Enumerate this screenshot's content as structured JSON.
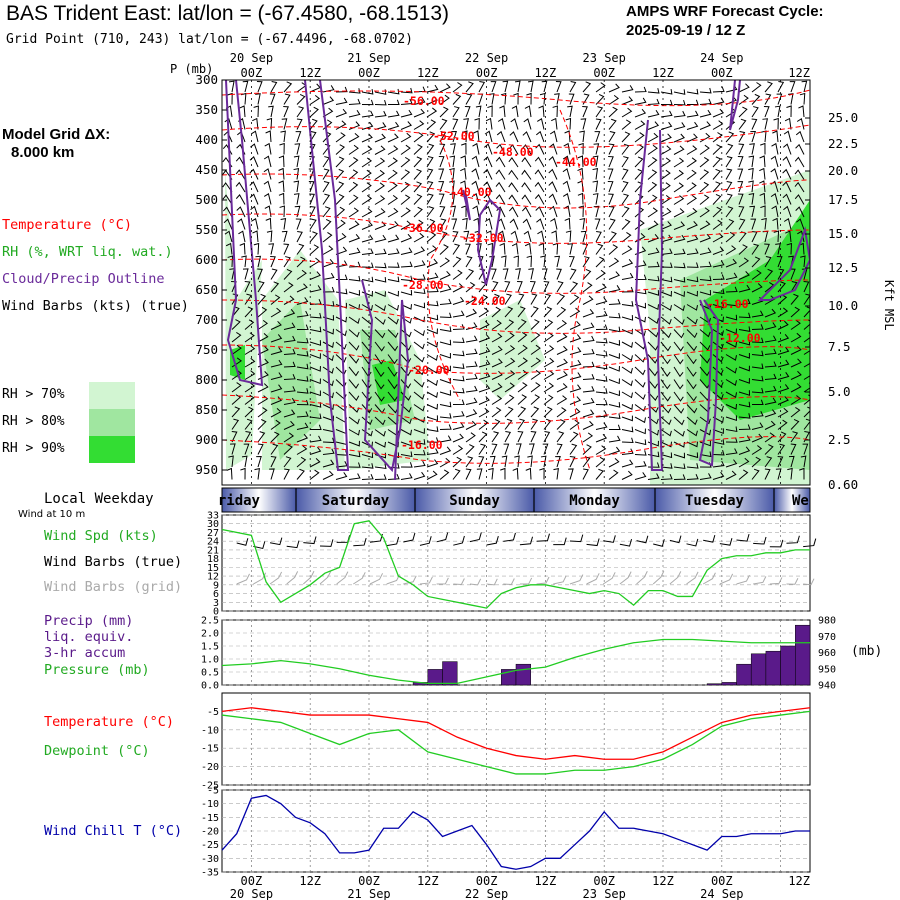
{
  "header": {
    "title": "BAS Trident East:  lat/lon = (-67.4580, -68.1513)",
    "subtitle": "Grid Point (710, 243) lat/lon = (-67.4496, -68.0702)",
    "cycle_line1": "AMPS WRF Forecast Cycle:",
    "cycle_line2": "2025-09-19 / 12  Z"
  },
  "model_grid": {
    "line1": "Model Grid ΔX:",
    "line2": "8.000 km"
  },
  "colors": {
    "temperature": "#ff0000",
    "rh": "#22cc22",
    "cloud": "#6a2a9a",
    "wind": "#000000",
    "wind_grid": "#aaaaaa",
    "wind_chill": "#0000aa",
    "precip": "#5a1a8a",
    "rh70": "#d2f5d2",
    "rh80": "#a0e6a0",
    "rh90": "#33dd33",
    "weekday_band": "#4a5aa8"
  },
  "sounding": {
    "p_label": "P (mb)",
    "pressure_ticks": [
      "300",
      "350",
      "400",
      "450",
      "500",
      "550",
      "600",
      "650",
      "700",
      "750",
      "800",
      "850",
      "900",
      "950"
    ],
    "height_ticks": [
      "25.0",
      "22.5",
      "20.0",
      "17.5",
      "15.0",
      "12.5",
      "10.0",
      "7.5",
      "5.0",
      "2.5",
      "0.60"
    ],
    "height_axis_label": "Kft MSL",
    "legend": {
      "temperature": "Temperature (°C)",
      "rh": "RH (%, WRT liq. wat.)",
      "cloud": "Cloud/Precip Outline",
      "wind": "Wind Barbs (kts) (true)"
    },
    "rh_legend": [
      "RH > 70%",
      "RH > 80%",
      "RH > 90%"
    ],
    "temp_labels": [
      "-56.00",
      "-52.00",
      "-48.00",
      "-44.00",
      "-40.00",
      "-36.00",
      "-32.00",
      "-28.00",
      "-24.00",
      "-20.00",
      "-16.00",
      "-16.00",
      "-12.00"
    ]
  },
  "time_axis": {
    "hour_labels": [
      "00Z",
      "12Z",
      "00Z",
      "12Z",
      "00Z",
      "12Z",
      "00Z",
      "12Z",
      "00Z",
      "12Z"
    ],
    "date_labels": [
      "20 Sep",
      "21 Sep",
      "22 Sep",
      "23 Sep",
      "24 Sep"
    ]
  },
  "weekday_strip": {
    "title": "Local Weekday",
    "days": [
      "riday",
      "Saturday",
      "Sunday",
      "Monday",
      "Tuesday",
      "We"
    ]
  },
  "panels": {
    "wind_at": "Wind at 10 m",
    "wind_spd_label": "Wind Spd (kts)",
    "wind_barbs_true": "Wind Barbs (true)",
    "wind_barbs_grid": "Wind Barbs (grid)",
    "precip_label_1": "Precip (mm)",
    "precip_label_2": "liq. equiv.",
    "precip_label_3": "3-hr accum",
    "pressure_label": "Pressure (mb)",
    "pressure_unit": "(mb)",
    "temp_label": "Temperature (°C)",
    "dew_label": "Dewpoint (°C)",
    "chill_label": "Wind Chill T (°C)"
  },
  "chart_data": [
    {
      "type": "line",
      "title": "Wind Spd (kts) at 10 m",
      "x_hours": [
        0,
        6,
        9,
        12,
        15,
        18,
        21,
        24,
        27,
        30,
        33,
        36,
        39,
        42,
        45,
        48,
        51,
        54,
        57,
        60,
        63,
        66,
        69,
        72,
        75,
        78,
        81,
        84,
        87,
        90,
        93,
        96,
        99,
        102,
        105,
        108,
        111,
        114,
        117,
        120
      ],
      "series": [
        {
          "name": "Wind Spd",
          "values": [
            28,
            26,
            10,
            3,
            6,
            9,
            13,
            15,
            30,
            31,
            25,
            12,
            9,
            5,
            4,
            3,
            2,
            1,
            6,
            8,
            9,
            9,
            8,
            7,
            6,
            7,
            6,
            2,
            7,
            7,
            5,
            5,
            14,
            18,
            19,
            19,
            20,
            20,
            21,
            21
          ]
        }
      ],
      "ylim": [
        0,
        33
      ],
      "yticks": [
        "0",
        "3",
        "6",
        "9",
        "12",
        "15",
        "18",
        "21",
        "24",
        "27",
        "30",
        "33"
      ]
    },
    {
      "type": "bar",
      "title": "Precip (mm) 3-hr accum and Pressure (mb)",
      "x_hours": [
        42,
        45,
        48,
        60,
        63,
        66,
        69,
        72,
        75,
        78,
        81,
        84,
        87,
        90,
        93,
        96,
        99,
        102,
        105,
        108,
        111,
        114,
        117,
        120
      ],
      "precip_values": [
        0.1,
        0.6,
        0.9,
        0.6,
        0.8,
        0.0,
        0.0,
        0.0,
        0.0,
        0.0,
        0.0,
        0.0,
        0.0,
        0.0,
        0.0,
        0.0,
        0.0,
        0.05,
        0.1,
        0.8,
        1.2,
        1.3,
        1.5,
        2.3
      ],
      "precip_ylim": [
        0,
        2.5
      ],
      "precip_yticks": [
        "0.0",
        "0.5",
        "1.0",
        "1.5",
        "2.0",
        "2.5"
      ],
      "pressure_x_hours": [
        0,
        6,
        12,
        18,
        24,
        30,
        36,
        42,
        48,
        54,
        60,
        66,
        72,
        78,
        84,
        90,
        96,
        102,
        108,
        114,
        120
      ],
      "pressure_values": [
        952,
        953,
        955,
        953,
        950,
        946,
        943,
        941,
        941,
        945,
        949,
        951,
        957,
        962,
        966,
        968,
        968,
        967,
        966,
        966,
        966
      ],
      "pressure_ylim": [
        940,
        980
      ],
      "pressure_yticks": [
        "940",
        "950",
        "960",
        "970",
        "980"
      ]
    },
    {
      "type": "line",
      "title": "Temperature and Dewpoint (°C)",
      "x_hours": [
        0,
        6,
        12,
        18,
        24,
        30,
        36,
        42,
        48,
        54,
        60,
        66,
        72,
        78,
        84,
        90,
        96,
        102,
        108,
        114,
        120
      ],
      "series": [
        {
          "name": "Temperature",
          "values": [
            -5,
            -4,
            -5,
            -6,
            -6,
            -6,
            -7,
            -8,
            -12,
            -15,
            -17,
            -18,
            -17,
            -18,
            -18,
            -16,
            -12,
            -8,
            -6,
            -5,
            -4
          ]
        },
        {
          "name": "Dewpoint",
          "values": [
            -6,
            -7,
            -8,
            -11,
            -14,
            -11,
            -10,
            -16,
            -18,
            -20,
            -22,
            -22,
            -21,
            -21,
            -20,
            -18,
            -14,
            -9,
            -7,
            -6,
            -5
          ]
        }
      ],
      "ylim": [
        -25,
        0
      ],
      "yticks": [
        "-5",
        "-10",
        "-15",
        "-20",
        "-25"
      ]
    },
    {
      "type": "line",
      "title": "Wind Chill T (°C)",
      "x_hours": [
        0,
        3,
        6,
        9,
        12,
        15,
        18,
        21,
        24,
        27,
        30,
        33,
        36,
        39,
        42,
        45,
        48,
        51,
        54,
        57,
        60,
        63,
        66,
        69,
        72,
        75,
        78,
        81,
        84,
        87,
        90,
        93,
        96,
        99,
        102,
        105,
        108,
        111,
        114,
        117,
        120
      ],
      "series": [
        {
          "name": "Wind Chill",
          "values": [
            -27,
            -21,
            -8,
            -7,
            -10,
            -15,
            -17,
            -21,
            -28,
            -28,
            -27,
            -19,
            -19,
            -13,
            -16,
            -22,
            -20,
            -18,
            -25,
            -33,
            -34,
            -33,
            -30,
            -30,
            -25,
            -20,
            -13,
            -19,
            -19,
            -20,
            -21,
            -23,
            -25,
            -27,
            -22,
            -22,
            -21,
            -21,
            -21,
            -20,
            -20
          ]
        }
      ],
      "ylim": [
        -35,
        -5
      ],
      "yticks": [
        "-5",
        "-10",
        "-15",
        "-20",
        "-25",
        "-30",
        "-35"
      ]
    }
  ]
}
